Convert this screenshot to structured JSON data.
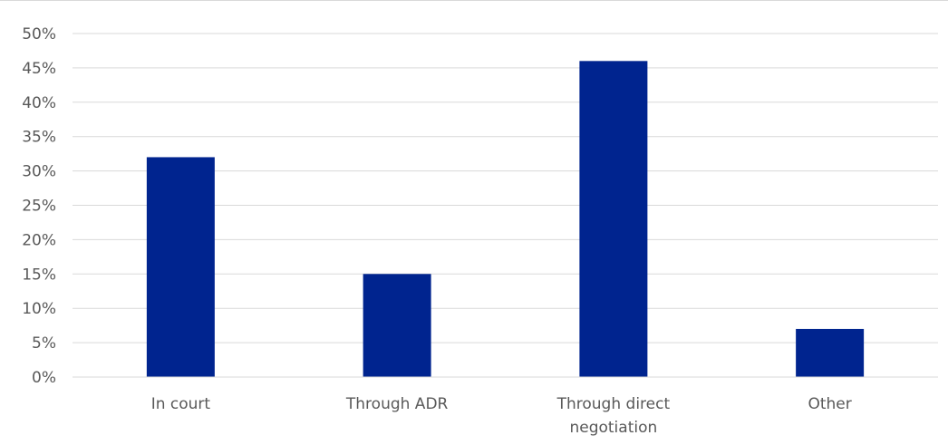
{
  "chart_data": {
    "type": "bar",
    "categories": [
      [
        "In court"
      ],
      [
        "Through ADR"
      ],
      [
        "Through direct",
        "negotiation"
      ],
      [
        "Other"
      ]
    ],
    "values": [
      0.32,
      0.15,
      0.46,
      0.07
    ],
    "ylim": [
      0,
      0.5
    ],
    "yticks": [
      "0%",
      "5%",
      "10%",
      "15%",
      "20%",
      "25%",
      "30%",
      "35%",
      "40%",
      "45%",
      "50%"
    ],
    "grid": true,
    "legend": "none",
    "bar_color": "#00248f",
    "grid_color": "#d9d9d9",
    "text_color": "#595959"
  }
}
